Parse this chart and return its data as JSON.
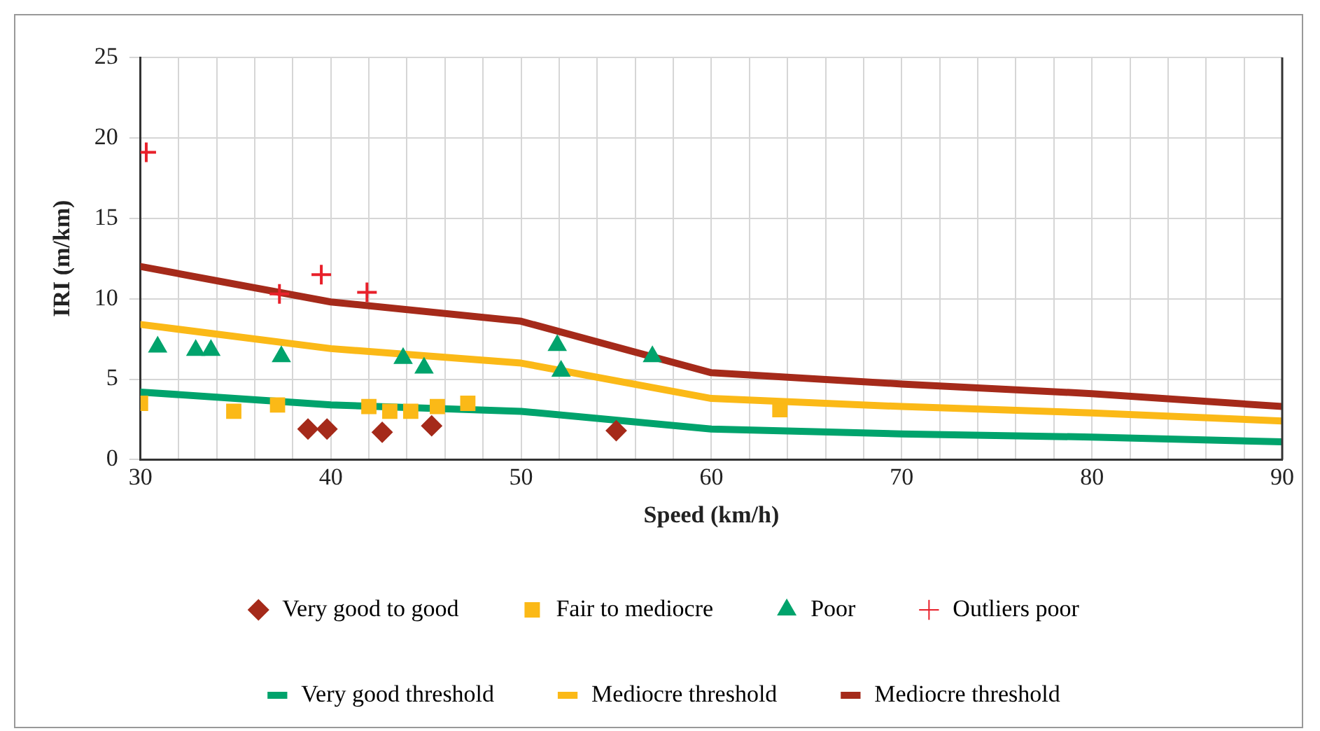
{
  "chart_data": {
    "type": "scatter",
    "xlabel": "Speed (km/h)",
    "ylabel": "IRI (m/km)",
    "xlim": [
      30,
      90
    ],
    "ylim": [
      0,
      25
    ],
    "xticks": [
      30,
      {
        "value": 32,
        "label": null
      },
      {
        "value": 34,
        "label": null
      },
      {
        "value": 36,
        "label": null
      },
      {
        "value": 38,
        "label": null
      },
      40,
      {
        "value": 42,
        "label": null
      },
      {
        "value": 44,
        "label": null
      },
      {
        "value": 46,
        "label": null
      },
      {
        "value": 48,
        "label": null
      },
      50,
      {
        "value": 52,
        "label": null
      },
      {
        "value": 54,
        "label": null
      },
      {
        "value": 56,
        "label": null
      },
      {
        "value": 58,
        "label": null
      },
      60,
      {
        "value": 62,
        "label": null
      },
      {
        "value": 64,
        "label": null
      },
      {
        "value": 66,
        "label": null
      },
      {
        "value": 68,
        "label": null
      },
      70,
      {
        "value": 72,
        "label": null
      },
      {
        "value": 74,
        "label": null
      },
      {
        "value": 76,
        "label": null
      },
      {
        "value": 78,
        "label": null
      },
      80,
      {
        "value": 82,
        "label": null
      },
      {
        "value": 84,
        "label": null
      },
      {
        "value": 86,
        "label": null
      },
      {
        "value": 88,
        "label": null
      },
      90
    ],
    "yticks": [
      0,
      5,
      10,
      15,
      20,
      25
    ],
    "grid": true,
    "legend": "bottom",
    "series": [
      {
        "name": "Very good to good",
        "marker": "diamond",
        "color": "#a52a1a",
        "x": [
          38.8,
          39.8,
          42.7,
          45.3,
          55.0
        ],
        "values": [
          1.9,
          1.9,
          1.7,
          2.1,
          1.8
        ]
      },
      {
        "name": "Fair to mediocre",
        "marker": "square",
        "color": "#fbb917",
        "x": [
          30,
          34.9,
          37.2,
          42.0,
          43.1,
          44.2,
          45.6,
          47.2,
          63.6
        ],
        "values": [
          3.5,
          3.0,
          3.4,
          3.3,
          3.0,
          3.0,
          3.3,
          3.5,
          3.1
        ]
      },
      {
        "name": "Poor",
        "marker": "triangle",
        "color": "#00a36c",
        "x": [
          30.9,
          32.9,
          33.7,
          37.4,
          43.8,
          44.9,
          51.9,
          52.1,
          56.9
        ],
        "values": [
          7.0,
          6.8,
          6.8,
          6.4,
          6.3,
          5.7,
          7.1,
          5.5,
          6.4
        ]
      },
      {
        "name": "Outliers poor",
        "marker": "cross",
        "color": "#e8202a",
        "x": [
          30.3,
          37.3,
          39.5,
          41.9
        ],
        "values": [
          19.1,
          10.3,
          11.5,
          10.4
        ]
      },
      {
        "name": "Very good threshold",
        "type": "line",
        "marker": "none",
        "color": "#00a36c",
        "x": [
          30,
          40,
          50,
          60,
          70,
          80,
          90
        ],
        "values": [
          4.2,
          3.4,
          3.0,
          1.9,
          1.6,
          1.4,
          1.1
        ]
      },
      {
        "name": "Mediocre threshold",
        "type": "line",
        "marker": "none",
        "color": "#fbb917",
        "x": [
          30,
          40,
          50,
          60,
          70,
          80,
          90
        ],
        "values": [
          8.4,
          6.9,
          6.0,
          3.8,
          3.3,
          2.9,
          2.4
        ]
      },
      {
        "name": "Mediocre threshold",
        "type": "line",
        "marker": "none",
        "color": "#a52a1a",
        "x": [
          30,
          40,
          50,
          60,
          70,
          80,
          90
        ],
        "values": [
          12.0,
          9.8,
          8.6,
          5.4,
          4.7,
          4.1,
          3.3
        ]
      }
    ]
  }
}
